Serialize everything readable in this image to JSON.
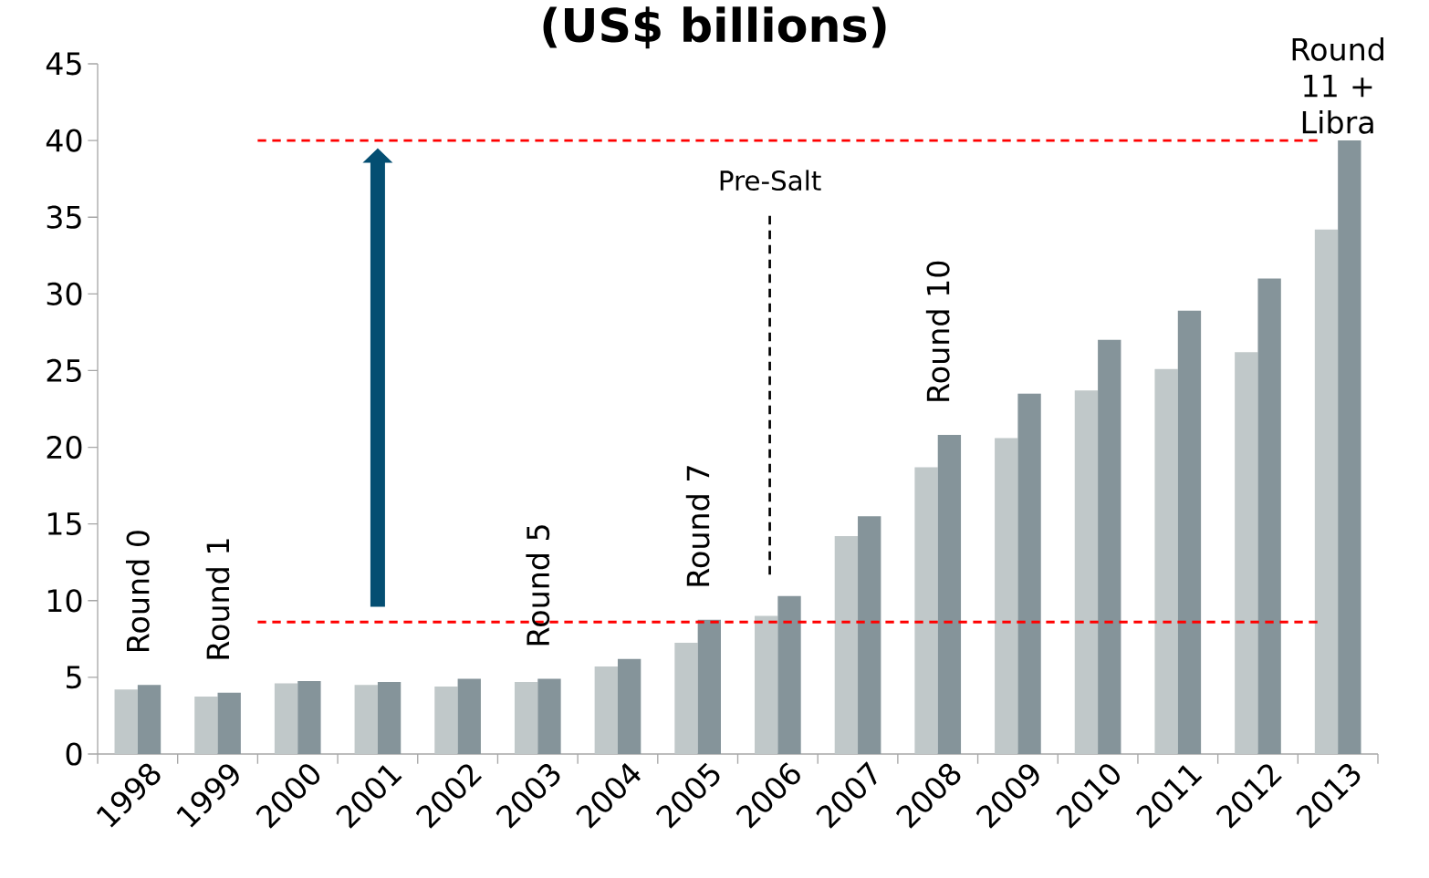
{
  "chart_data": {
    "type": "bar",
    "title": "(US$ billions)",
    "categories": [
      "1998",
      "1999",
      "2000",
      "2001",
      "2002",
      "2003",
      "2004",
      "2005",
      "2006",
      "2007",
      "2008",
      "2009",
      "2010",
      "2011",
      "2012",
      "2013"
    ],
    "series": [
      {
        "color": "#c0c8c9",
        "values": [
          4.2,
          3.75,
          4.6,
          4.5,
          4.4,
          4.7,
          5.7,
          7.25,
          9.0,
          14.2,
          18.7,
          20.6,
          23.7,
          25.1,
          26.2,
          34.2
        ]
      },
      {
        "color": "#85949a",
        "values": [
          4.5,
          4.0,
          4.75,
          4.7,
          4.9,
          4.9,
          6.2,
          8.75,
          10.3,
          15.5,
          20.8,
          23.5,
          27.0,
          28.9,
          31.0,
          40.0
        ]
      }
    ],
    "ylim": [
      0,
      45
    ],
    "yticks": [
      0,
      5,
      10,
      15,
      20,
      25,
      30,
      35,
      40,
      45
    ],
    "ref_lines": [
      {
        "axis": "y",
        "value": 40,
        "color": "#ff0000",
        "line_style": "dashed"
      },
      {
        "axis": "y",
        "value": 8.6,
        "color": "#ff0000",
        "line_style": "dashed"
      },
      {
        "axis": "x",
        "value": "2006",
        "label": "Pre-Salt",
        "color": "#000000",
        "line_style": "dashed"
      }
    ],
    "annotations": [
      {
        "text": "Round 0",
        "x": "1998",
        "y": 4.5
      },
      {
        "text": "Round 1",
        "x": "1999",
        "y": 4.0
      },
      {
        "text": "Round 5",
        "x": "2003",
        "y": 4.9
      },
      {
        "text": "Round 7",
        "x": "2005",
        "y": 8.75
      },
      {
        "text": "Round 10",
        "x": "2008",
        "y": 20.8
      },
      {
        "text": "Round 11 + Libra",
        "x": "2013",
        "y": 40.0
      }
    ]
  }
}
